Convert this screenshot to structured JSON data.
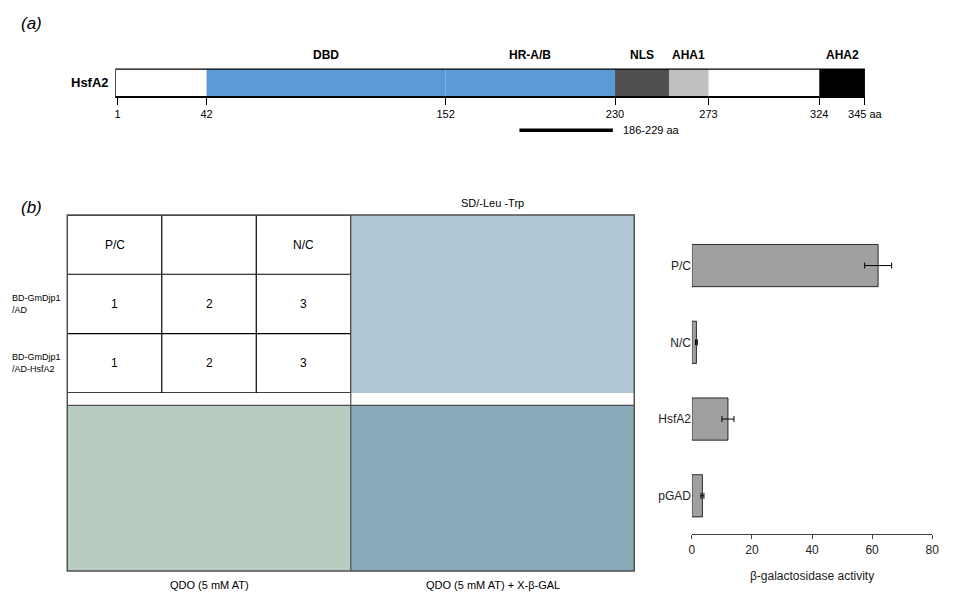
{
  "chart_data": [
    {
      "type": "domain",
      "title": "(a)",
      "ylabel": "HsfA2",
      "categories": [
        "DBD",
        "HR-A/B",
        "NLS",
        "AHA1",
        "AHA2"
      ],
      "start": [
        42,
        152,
        230,
        255,
        324
      ],
      "end": [
        152,
        230,
        255,
        273,
        345
      ],
      "colors": [
        "#5b9bd5",
        "#5b9bd5",
        "#505050",
        "#c0c0c0",
        "#000000"
      ],
      "xlim": [
        0,
        345
      ],
      "xticks": [
        1,
        42,
        152,
        230,
        273,
        324,
        {
          "value": 345,
          "label": "345 aa"
        }
      ],
      "annotations": [
        {
          "text": "186-229 aa",
          "start": 186,
          "end": 229
        }
      ]
    },
    {
      "type": "table",
      "title": "(b)",
      "categories": [
        "P/C",
        null,
        "N/C"
      ],
      "series": [
        {
          "name": "BD-GmDjp1\n/AD",
          "values": [
            1,
            2,
            3
          ]
        },
        {
          "name": "BD-GmDjp1\n/AD-HsfA2",
          "values": [
            1,
            2,
            3
          ]
        }
      ]
    },
    {
      "type": "image",
      "annotations": [
        "SD/-Leu -Trp",
        "QDO (5 mM AT)",
        "QDO (5 mM AT) + X-β-GAL"
      ],
      "colors": [
        "#b0c8d5",
        "#b8ccc0",
        "#88aab8"
      ]
    },
    {
      "type": "bar",
      "orientation": "horizontal",
      "categories": [
        "pGAD",
        "HsfA2",
        "N/C",
        "P/C"
      ],
      "values": [
        3.5,
        12.0,
        1.5,
        62.0
      ],
      "errors": [
        0.5,
        2.0,
        0.3,
        4.5
      ],
      "color": "#a0a0a0",
      "xlabel": "β-galactosidase activity",
      "xlim": [
        0,
        80
      ],
      "xticks": [
        0,
        20,
        40,
        60,
        80
      ],
      "grid": false
    }
  ]
}
